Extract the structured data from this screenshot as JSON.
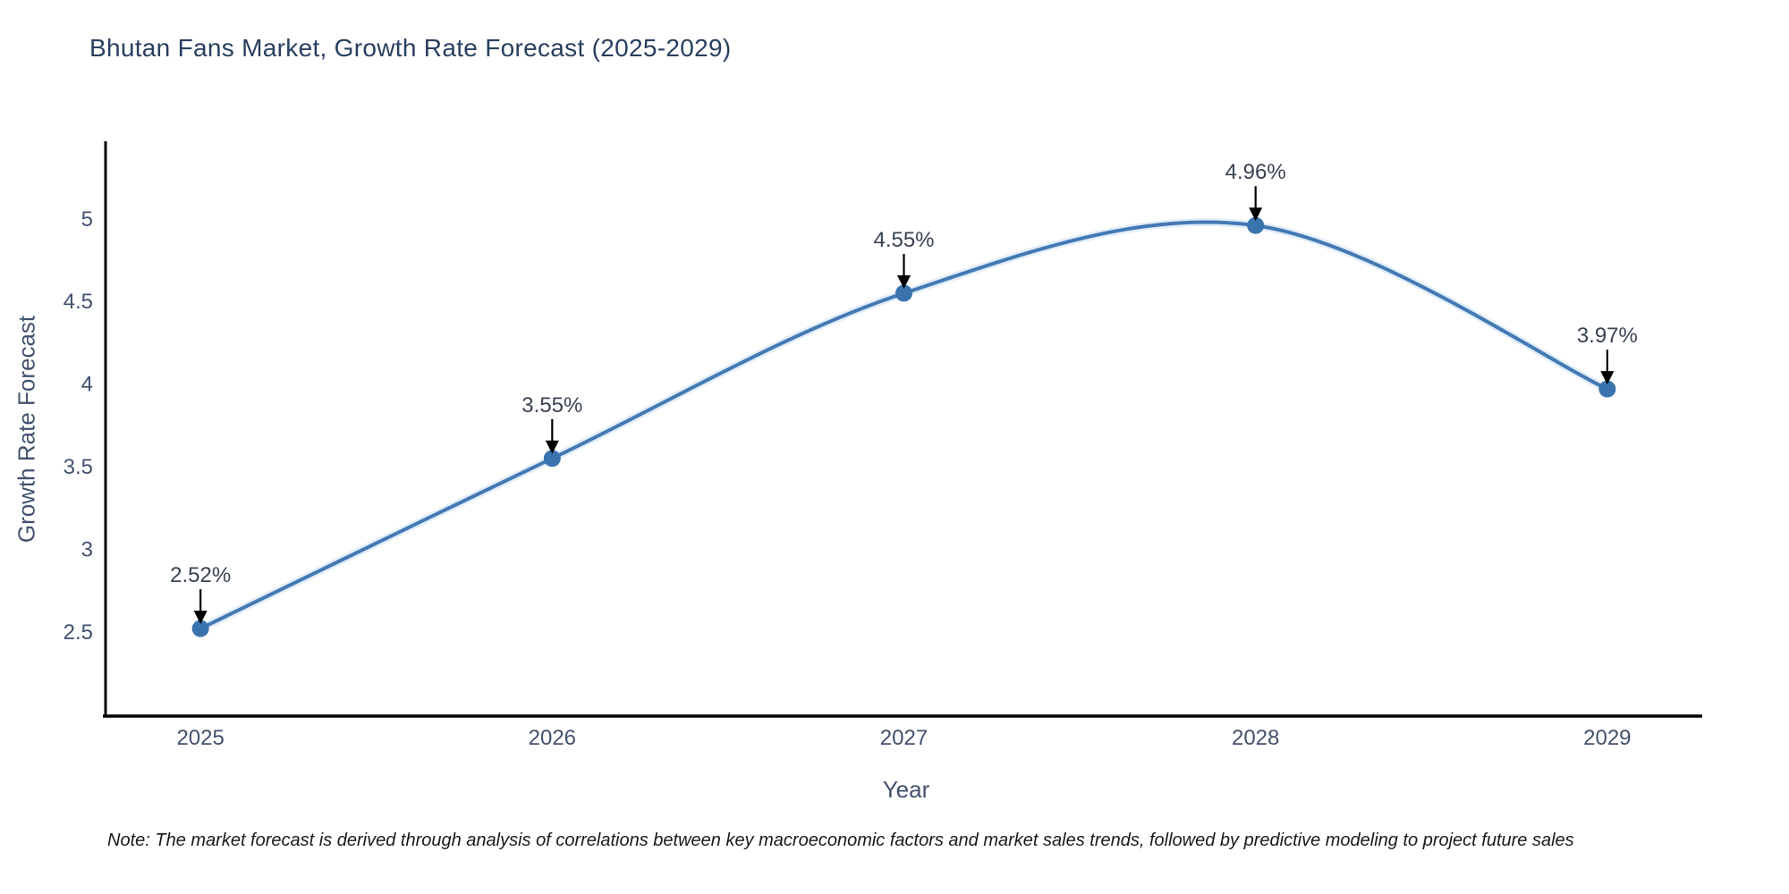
{
  "chart_data": {
    "type": "line",
    "title": "Bhutan Fans Market, Growth Rate Forecast (2025-2029)",
    "xlabel": "Year",
    "ylabel": "Growth Rate Forecast",
    "x": [
      2025,
      2026,
      2027,
      2028,
      2029
    ],
    "x_tick_labels": [
      "2025",
      "2026",
      "2027",
      "2028",
      "2029"
    ],
    "series": [
      {
        "name": "Growth Rate Forecast",
        "values": [
          2.52,
          3.55,
          4.55,
          4.96,
          3.97
        ],
        "point_labels": [
          "2.52%",
          "3.55%",
          "4.55%",
          "4.96%",
          "3.97%"
        ]
      }
    ],
    "y_ticks": [
      2.5,
      3,
      3.5,
      4,
      4.5,
      5
    ],
    "y_tick_labels": [
      "2.5",
      "3",
      "3.5",
      "4",
      "4.5",
      "5"
    ],
    "xlim": [
      2024.73,
      2029.27
    ],
    "ylim": [
      1.99,
      5.47
    ],
    "grid": false,
    "legend": false,
    "line_shape": "spline",
    "note": "Note: The market forecast is derived through analysis of correlations between key macroeconomic factors and market sales trends, followed by predictive modeling to project future sales",
    "colors": {
      "line": "#4379b4",
      "line_halo": "#d9e9f7",
      "marker": "#3a74af",
      "arrow": "#000000",
      "axis": "#000000",
      "tick_label": "#42516d",
      "title": "#2a3f5f",
      "axis_title": "#42516d",
      "point_label": "#3a4252",
      "note": "#1a1a1a",
      "background": "#ffffff"
    }
  }
}
